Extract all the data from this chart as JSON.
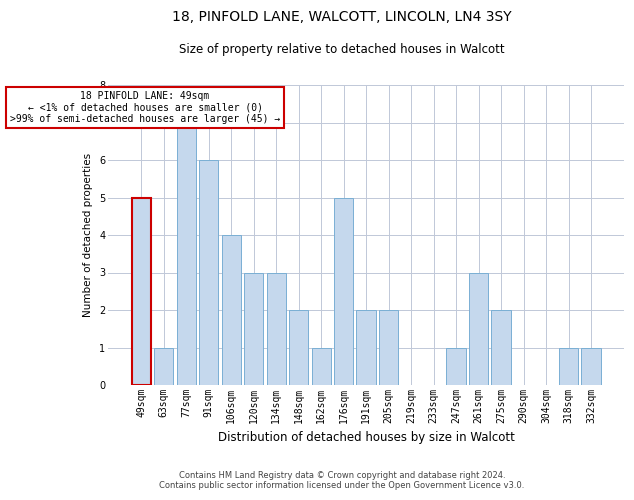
{
  "title": "18, PINFOLD LANE, WALCOTT, LINCOLN, LN4 3SY",
  "subtitle": "Size of property relative to detached houses in Walcott",
  "xlabel": "Distribution of detached houses by size in Walcott",
  "ylabel": "Number of detached properties",
  "categories": [
    "49sqm",
    "63sqm",
    "77sqm",
    "91sqm",
    "106sqm",
    "120sqm",
    "134sqm",
    "148sqm",
    "162sqm",
    "176sqm",
    "191sqm",
    "205sqm",
    "219sqm",
    "233sqm",
    "247sqm",
    "261sqm",
    "275sqm",
    "290sqm",
    "304sqm",
    "318sqm",
    "332sqm"
  ],
  "values": [
    5,
    1,
    7,
    6,
    4,
    3,
    3,
    2,
    1,
    5,
    2,
    2,
    0,
    0,
    1,
    3,
    2,
    0,
    0,
    1,
    1
  ],
  "highlight_index": 0,
  "bar_color_normal": "#c5d8ed",
  "bar_edge_color": "#7aafd4",
  "highlight_bar_edge_color": "#cc0000",
  "ylim": [
    0,
    8
  ],
  "yticks": [
    0,
    1,
    2,
    3,
    4,
    5,
    6,
    7,
    8
  ],
  "annotation_box_text": "18 PINFOLD LANE: 49sqm\n← <1% of detached houses are smaller (0)\n>99% of semi-detached houses are larger (45) →",
  "annotation_box_edge_color": "#cc0000",
  "footer_line1": "Contains HM Land Registry data © Crown copyright and database right 2024.",
  "footer_line2": "Contains public sector information licensed under the Open Government Licence v3.0.",
  "bg_color": "#ffffff",
  "grid_color": "#c0c8d8",
  "title_fontsize": 10,
  "subtitle_fontsize": 8.5,
  "ylabel_fontsize": 7.5,
  "xlabel_fontsize": 8.5,
  "tick_fontsize": 7,
  "annotation_fontsize": 7,
  "footer_fontsize": 6
}
